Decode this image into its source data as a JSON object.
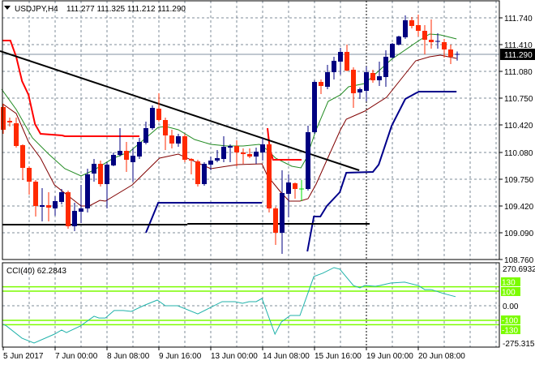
{
  "header": {
    "symbol_label": "USDJPY,H4",
    "ohlc_label": "111.277 111.325 111.212 111.290",
    "menu_icon": "triangle-down-icon"
  },
  "colors": {
    "background": "#ffffff",
    "grid": "#7f8c99",
    "bull_candle": "#000080",
    "bear_candle": "#ff2a00",
    "doji_candle": "#00e000",
    "ma_fast": "#228b22",
    "ma_slow": "#800000",
    "upper_channel": "#ff0000",
    "lower_channel": "#00008b",
    "trendline": "#000000",
    "cci_line": "#20b2aa",
    "cci_levels": "#7cfc00"
  },
  "chart_data": [
    {
      "type": "candlestick",
      "title": "USDJPY,H4",
      "ylim": [
        108.76,
        111.96
      ],
      "y_ticks": [
        "111.740",
        "111.410",
        "111.080",
        "110.750",
        "110.420",
        "110.080",
        "109.750",
        "109.420",
        "109.090",
        "108.760"
      ],
      "y_tick_values": [
        111.74,
        111.41,
        111.08,
        110.75,
        110.42,
        110.08,
        109.75,
        109.42,
        109.09,
        108.76
      ],
      "current_price": "111.290",
      "x_tick_labels": [
        {
          "bar": 1,
          "label": "5 Jun 2017"
        },
        {
          "bar": 9,
          "label": "7 Jun 00:00"
        },
        {
          "bar": 17,
          "label": "8 Jun 08:00"
        },
        {
          "bar": 25,
          "label": "9 Jun 16:00"
        },
        {
          "bar": 33,
          "label": "13 Jun 00:00"
        },
        {
          "bar": 41,
          "label": "14 Jun 08:00"
        },
        {
          "bar": 49,
          "label": "15 Jun 16:00"
        },
        {
          "bar": 57,
          "label": "19 Jun 00:00"
        },
        {
          "bar": 65,
          "label": "20 Jun 08:00"
        }
      ],
      "period_separators": [
        27,
        57
      ],
      "grid": true,
      "ohlc": [
        [
          110.64,
          110.68,
          110.31,
          110.36
        ],
        [
          110.47,
          110.51,
          110.4,
          110.45
        ],
        [
          110.44,
          110.51,
          110.14,
          110.16
        ],
        [
          110.17,
          110.18,
          109.74,
          109.89
        ],
        [
          109.89,
          109.91,
          109.56,
          109.72
        ],
        [
          109.72,
          109.74,
          109.29,
          109.42
        ],
        [
          109.41,
          109.64,
          109.23,
          109.43
        ],
        [
          109.43,
          109.59,
          109.23,
          109.4
        ],
        [
          109.39,
          109.54,
          109.3,
          109.48
        ],
        [
          109.47,
          109.63,
          109.44,
          109.59
        ],
        [
          109.59,
          109.61,
          109.14,
          109.17
        ],
        [
          109.17,
          109.46,
          109.11,
          109.36
        ],
        [
          109.35,
          109.68,
          109.21,
          109.39
        ],
        [
          109.39,
          109.88,
          109.34,
          109.81
        ],
        [
          109.82,
          110.0,
          109.72,
          109.94
        ],
        [
          109.94,
          109.98,
          109.66,
          109.69
        ],
        [
          109.69,
          109.96,
          109.39,
          109.93
        ],
        [
          109.92,
          110.08,
          109.91,
          110.05
        ],
        [
          110.05,
          110.38,
          110.03,
          110.1
        ],
        [
          110.1,
          110.21,
          109.84,
          109.99
        ],
        [
          109.96,
          110.13,
          109.72,
          110.04
        ],
        [
          110.03,
          110.26,
          110.0,
          110.21
        ],
        [
          110.2,
          110.46,
          110.18,
          110.38
        ],
        [
          110.38,
          110.66,
          110.36,
          110.63
        ],
        [
          110.62,
          110.81,
          110.46,
          110.48
        ],
        [
          110.48,
          110.51,
          110.11,
          110.29
        ],
        [
          110.29,
          110.36,
          110.13,
          110.19
        ],
        [
          110.19,
          110.31,
          110.15,
          110.28
        ],
        [
          110.28,
          110.31,
          109.96,
          109.99
        ],
        [
          110.0,
          110.01,
          109.81,
          109.98
        ],
        [
          109.97,
          109.99,
          109.66,
          109.69
        ],
        [
          109.69,
          109.96,
          109.67,
          109.94
        ],
        [
          109.93,
          110.03,
          109.86,
          109.98
        ],
        [
          109.98,
          110.11,
          109.96,
          110.01
        ],
        [
          110.0,
          110.28,
          109.96,
          110.15
        ],
        [
          110.14,
          110.18,
          109.96,
          110.16
        ],
        [
          110.16,
          110.23,
          109.91,
          110.08
        ],
        [
          110.08,
          110.13,
          109.94,
          110.06
        ],
        [
          110.06,
          110.13,
          110.01,
          110.03
        ],
        [
          110.03,
          110.14,
          109.94,
          110.09
        ],
        [
          110.08,
          110.26,
          109.98,
          110.18
        ],
        [
          110.18,
          110.21,
          109.34,
          109.39
        ],
        [
          109.39,
          109.41,
          108.94,
          109.09
        ],
        [
          109.09,
          109.86,
          108.83,
          109.58
        ],
        [
          109.57,
          109.81,
          109.28,
          109.71
        ],
        [
          109.7,
          109.71,
          109.51,
          109.63
        ],
        [
          109.63,
          109.74,
          109.48,
          109.63
        ],
        [
          109.63,
          110.41,
          109.61,
          110.33
        ],
        [
          110.33,
          110.97,
          110.31,
          110.95
        ],
        [
          110.95,
          110.98,
          110.8,
          110.9
        ],
        [
          110.89,
          111.16,
          110.86,
          111.07
        ],
        [
          111.07,
          111.26,
          110.98,
          111.21
        ],
        [
          111.2,
          111.37,
          111.04,
          111.32
        ],
        [
          111.32,
          111.41,
          111.08,
          111.09
        ],
        [
          111.1,
          111.13,
          110.63,
          110.81
        ],
        [
          110.82,
          110.88,
          110.74,
          110.86
        ],
        [
          110.84,
          111.14,
          110.71,
          111.07
        ],
        [
          111.06,
          111.1,
          110.94,
          110.97
        ],
        [
          110.97,
          111.2,
          110.9,
          111.02
        ],
        [
          111.01,
          111.34,
          110.89,
          111.26
        ],
        [
          111.25,
          111.43,
          111.24,
          111.42
        ],
        [
          111.41,
          111.52,
          111.4,
          111.51
        ],
        [
          111.5,
          111.77,
          111.48,
          111.71
        ],
        [
          111.71,
          111.75,
          111.61,
          111.64
        ],
        [
          111.65,
          111.78,
          111.51,
          111.58
        ],
        [
          111.58,
          111.65,
          111.29,
          111.47
        ],
        [
          111.47,
          111.72,
          111.36,
          111.44
        ],
        [
          111.45,
          111.55,
          111.36,
          111.45
        ],
        [
          111.44,
          111.48,
          111.25,
          111.35
        ],
        [
          111.35,
          111.41,
          111.17,
          111.26
        ],
        [
          111.277,
          111.325,
          111.212,
          111.29
        ]
      ],
      "overlays": [
        {
          "kind": "ma_fast",
          "points": [
            [
              0.75,
              110.86
            ],
            [
              3,
              110.61
            ],
            [
              5.5,
              110.26
            ],
            [
              8,
              110.06
            ],
            [
              10.5,
              109.88
            ],
            [
              13,
              109.79
            ],
            [
              14.9,
              109.86
            ],
            [
              18,
              110.01
            ],
            [
              20.5,
              110.09
            ],
            [
              23,
              110.26
            ],
            [
              24.9,
              110.39
            ],
            [
              26.1,
              110.4
            ],
            [
              28,
              110.36
            ],
            [
              30.5,
              110.24
            ],
            [
              33,
              110.18
            ],
            [
              35.5,
              110.16
            ],
            [
              38,
              110.16
            ],
            [
              40.5,
              110.18
            ],
            [
              41.75,
              110.11
            ],
            [
              43,
              110.01
            ],
            [
              45.5,
              109.91
            ],
            [
              46.9,
              109.89
            ],
            [
              47.75,
              110.01
            ],
            [
              49.25,
              110.36
            ],
            [
              51.1,
              110.71
            ],
            [
              53,
              110.79
            ],
            [
              54.25,
              110.89
            ],
            [
              56.75,
              110.93
            ],
            [
              60.9,
              111.23
            ],
            [
              65.1,
              111.46
            ],
            [
              66.75,
              111.54
            ],
            [
              68.4,
              111.53
            ],
            [
              70.9,
              111.48
            ]
          ]
        },
        {
          "kind": "ma_slow",
          "points": [
            [
              0.9,
              110.68
            ],
            [
              3,
              110.56
            ],
            [
              4.9,
              110.21
            ],
            [
              6.75,
              110.01
            ],
            [
              8.9,
              109.68
            ],
            [
              13,
              109.42
            ],
            [
              14.25,
              109.42
            ],
            [
              15.9,
              109.49
            ],
            [
              16.75,
              109.48
            ],
            [
              20.9,
              109.68
            ],
            [
              25.1,
              110.01
            ],
            [
              28,
              110.06
            ],
            [
              33,
              109.88
            ],
            [
              37.1,
              109.93
            ],
            [
              40.9,
              109.94
            ],
            [
              41.75,
              109.79
            ],
            [
              43.9,
              109.58
            ],
            [
              45.1,
              109.48
            ],
            [
              46.75,
              109.48
            ],
            [
              48,
              109.51
            ],
            [
              49.25,
              109.69
            ],
            [
              53,
              110.36
            ],
            [
              53.9,
              110.49
            ],
            [
              56.75,
              110.59
            ],
            [
              60.1,
              110.76
            ],
            [
              63.4,
              111.09
            ],
            [
              64.6,
              111.21
            ],
            [
              66.75,
              111.26
            ],
            [
              68.4,
              111.28
            ],
            [
              70.9,
              111.24
            ]
          ]
        },
        {
          "kind": "upper_channel",
          "points": [
            [
              0.9,
              111.46
            ],
            [
              2.1,
              111.46
            ],
            [
              3,
              111.26
            ],
            [
              3.9,
              110.96
            ],
            [
              4.9,
              110.79
            ],
            [
              5.9,
              110.43
            ],
            [
              6.75,
              110.31
            ],
            [
              10.1,
              110.29
            ],
            [
              10.5,
              110.28
            ],
            [
              22,
              110.28
            ]
          ]
        },
        {
          "kind": "upper_channel",
          "points": [
            [
              41.75,
              110.38
            ],
            [
              42.1,
              110.13
            ],
            [
              42.6,
              109.99
            ],
            [
              47,
              109.99
            ]
          ]
        },
        {
          "kind": "lower_channel",
          "points": [
            [
              23,
              109.09
            ],
            [
              24.9,
              109.46
            ],
            [
              40.9,
              109.46
            ]
          ]
        },
        {
          "kind": "lower_channel",
          "points": [
            [
              47.9,
              108.86
            ],
            [
              48.9,
              109.29
            ],
            [
              49.9,
              109.29
            ],
            [
              50.9,
              109.42
            ],
            [
              52.9,
              109.59
            ],
            [
              53.9,
              109.83
            ],
            [
              58,
              109.84
            ],
            [
              58.9,
              109.93
            ],
            [
              60.9,
              110.41
            ],
            [
              63,
              110.74
            ],
            [
              64.6,
              110.81
            ],
            [
              65.1,
              110.83
            ],
            [
              70.9,
              110.83
            ]
          ]
        },
        {
          "kind": "trendline",
          "points": [
            [
              0.5,
              111.33
            ],
            [
              55.9,
              109.86
            ]
          ]
        },
        {
          "kind": "trendline",
          "points": [
            [
              0.9,
              109.19
            ],
            [
              29.4,
              109.19
            ]
          ]
        },
        {
          "kind": "trendline",
          "points": [
            [
              29.4,
              109.2
            ],
            [
              57.5,
              109.2
            ]
          ]
        }
      ]
    },
    {
      "type": "line",
      "title": "CCI(40) 62.2843",
      "ylim": [
        -275.3151,
        270.6932
      ],
      "y_ticks": [
        "270.6932",
        "0.00",
        "-275.3151"
      ],
      "y_tick_values": [
        270.6932,
        0,
        -275.3151
      ],
      "levels": [
        {
          "value": 130,
          "label": "130"
        },
        {
          "value": 100,
          "label": "100"
        },
        {
          "value": -100,
          "label": "-100"
        },
        {
          "value": -130,
          "label": "-130"
        }
      ],
      "series": [
        {
          "points": [
            [
              1,
              -128
            ],
            [
              1.5,
              -139
            ],
            [
              3.9,
              -223
            ],
            [
              5.75,
              -256
            ],
            [
              8.9,
              -195
            ],
            [
              10,
              -167
            ],
            [
              10.75,
              -184
            ],
            [
              12.9,
              -139
            ],
            [
              15,
              -72
            ],
            [
              15.75,
              -84
            ],
            [
              16.75,
              -84
            ],
            [
              18.1,
              -33
            ],
            [
              19.5,
              -33
            ],
            [
              20.75,
              -39
            ],
            [
              22.6,
              0
            ],
            [
              24.75,
              39
            ],
            [
              26,
              0
            ],
            [
              27.9,
              0
            ],
            [
              31,
              -56
            ],
            [
              34.75,
              28
            ],
            [
              36.75,
              28
            ],
            [
              37.9,
              17
            ],
            [
              38.9,
              28
            ],
            [
              40,
              28
            ],
            [
              40.9,
              50
            ],
            [
              42.9,
              -195
            ],
            [
              43.9,
              -111
            ],
            [
              45.25,
              -67
            ],
            [
              46.75,
              -67
            ],
            [
              48.9,
              201
            ],
            [
              50.25,
              223
            ],
            [
              52,
              262
            ],
            [
              52.9,
              251
            ],
            [
              55,
              139
            ],
            [
              56,
              123
            ],
            [
              56.75,
              139
            ],
            [
              58.4,
              134
            ],
            [
              59.1,
              139
            ],
            [
              60.75,
              156
            ],
            [
              62.9,
              162
            ],
            [
              65,
              139
            ],
            [
              66,
              111
            ],
            [
              67,
              111
            ],
            [
              68.9,
              84
            ],
            [
              70.75,
              62.2843
            ]
          ]
        }
      ]
    }
  ]
}
